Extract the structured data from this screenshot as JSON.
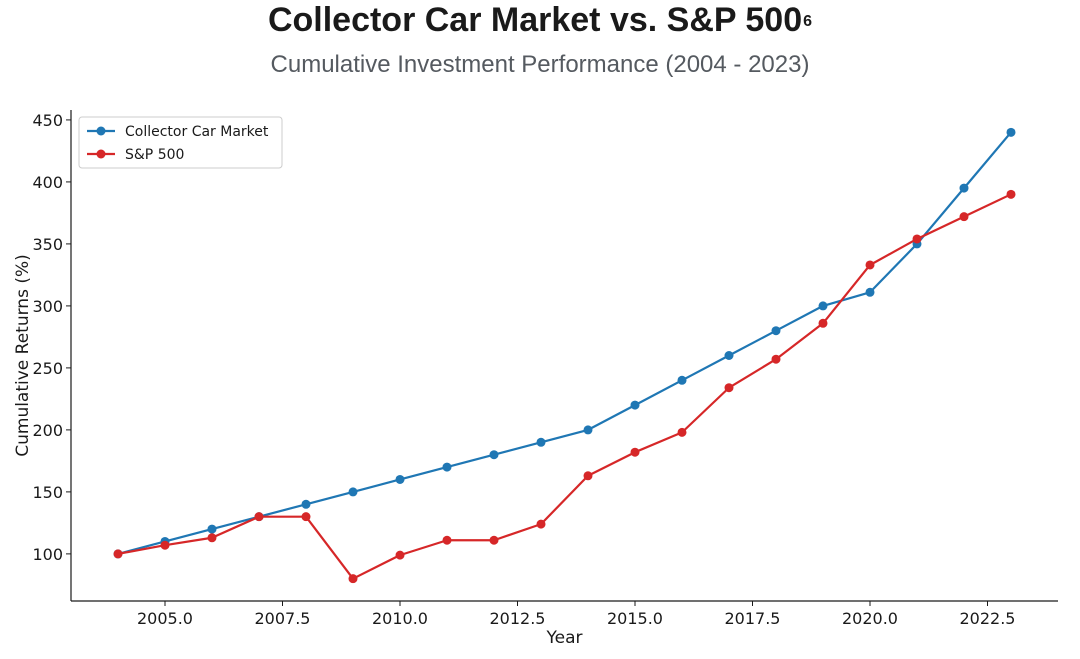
{
  "header": {
    "title": "Collector Car Market vs. S&P 500",
    "title_sup": "6",
    "subtitle": "Cumulative Investment Performance (2004 - 2023)"
  },
  "chart_data": {
    "type": "line",
    "xlabel": "Year",
    "ylabel": "Cumulative Returns (%)",
    "xlim": [
      2003.0,
      2024.0
    ],
    "ylim": [
      62,
      458
    ],
    "x_ticks": [
      2005.0,
      2007.5,
      2010.0,
      2012.5,
      2015.0,
      2017.5,
      2020.0,
      2022.5
    ],
    "x_tick_labels": [
      "2005.0",
      "2007.5",
      "2010.0",
      "2012.5",
      "2015.0",
      "2017.5",
      "2020.0",
      "2022.5"
    ],
    "y_ticks": [
      100,
      150,
      200,
      250,
      300,
      350,
      400,
      450
    ],
    "y_tick_labels": [
      "100",
      "150",
      "200",
      "250",
      "300",
      "350",
      "400",
      "450"
    ],
    "grid": false,
    "legend_position": "top-left",
    "x": [
      2004,
      2005,
      2006,
      2007,
      2008,
      2009,
      2010,
      2011,
      2012,
      2013,
      2014,
      2015,
      2016,
      2017,
      2018,
      2019,
      2020,
      2021,
      2022,
      2023
    ],
    "series": [
      {
        "name": "Collector Car Market",
        "color": "#1f77b4",
        "values": [
          100,
          110,
          120,
          130,
          140,
          150,
          160,
          170,
          180,
          190,
          200,
          220,
          240,
          260,
          280,
          300,
          311,
          350,
          395,
          440
        ]
      },
      {
        "name": "S&P 500",
        "color": "#d62728",
        "values": [
          100,
          107,
          113,
          130,
          130,
          80,
          99,
          111,
          111,
          124,
          163,
          182,
          198,
          234,
          257,
          286,
          333,
          354,
          372,
          390
        ]
      }
    ]
  }
}
